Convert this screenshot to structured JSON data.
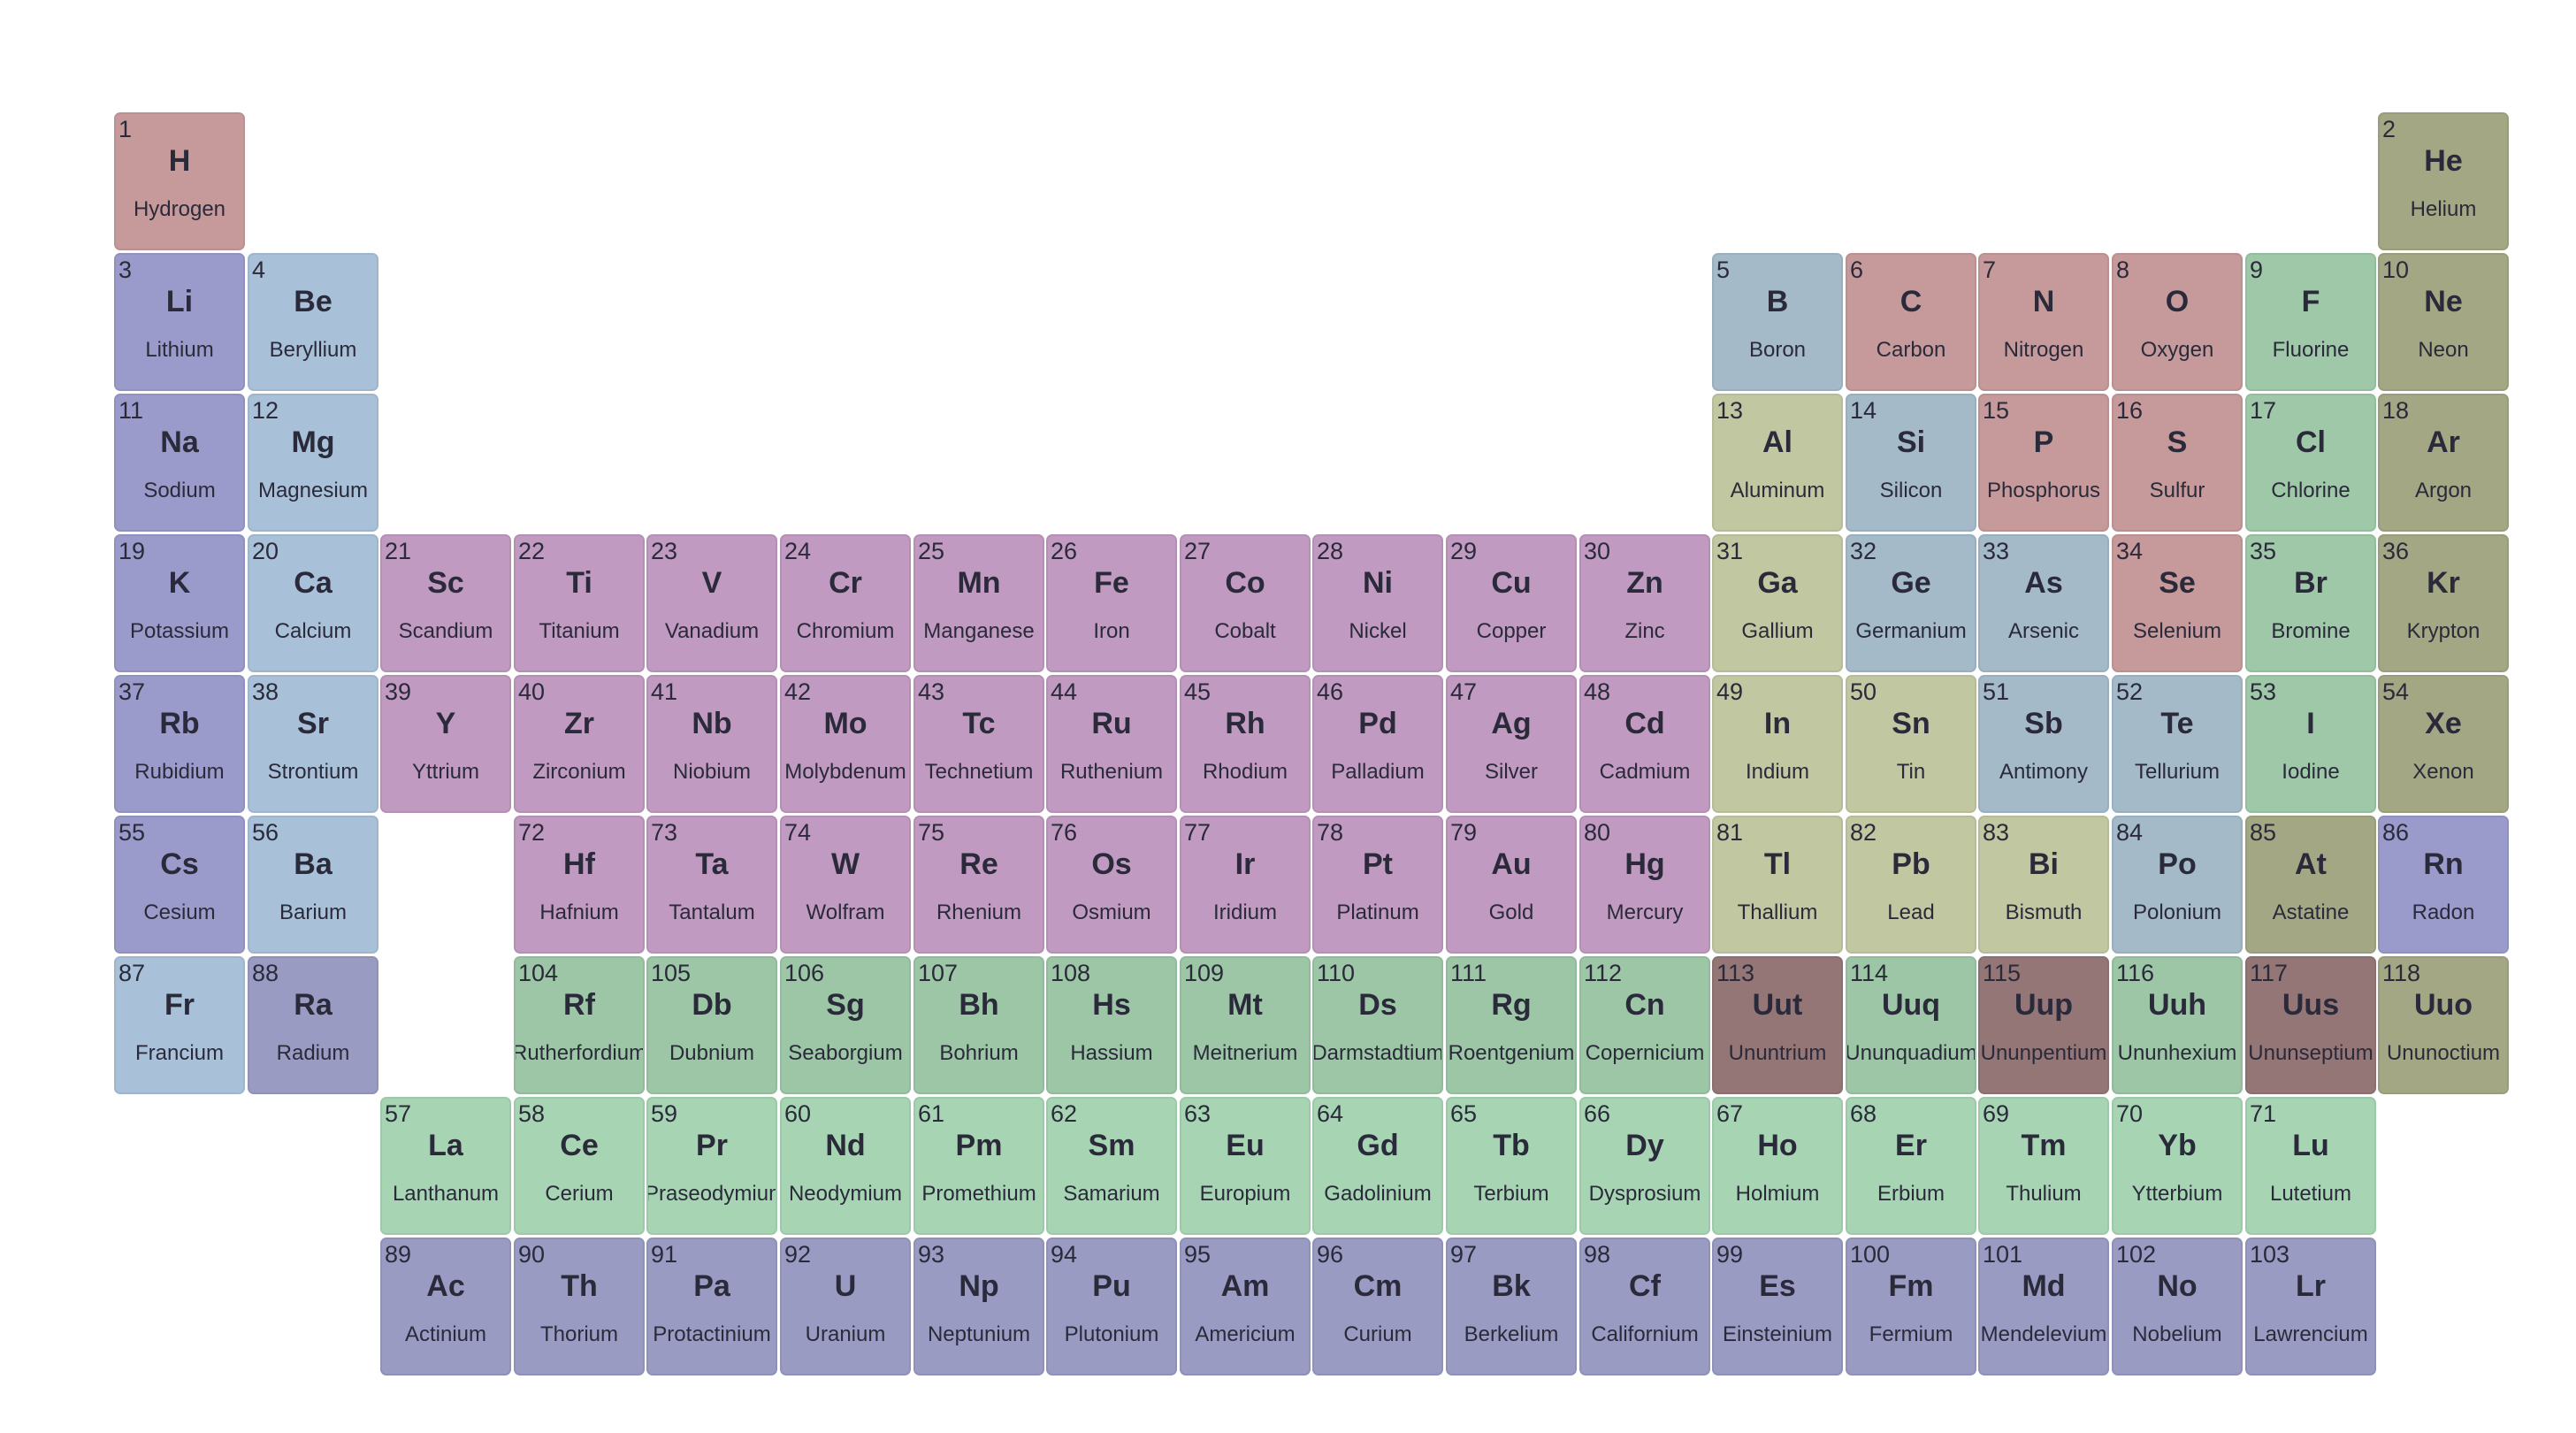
{
  "colors": {
    "nonmetal": "#c69a9b",
    "alkali": "#9a9bca",
    "alkaline": "#a8c1d9",
    "transition": "#c09ac1",
    "posttransition": "#c1c8a1",
    "metalloid": "#a4bac9",
    "halogen": "#9ec8a8",
    "noble": "#a3a784",
    "lanthanide": "#a7d5b4",
    "actinide": "#9a9bc3",
    "superheavy": "#9cc6a6",
    "unknown": "#947677"
  },
  "elements": [
    {
      "n": 1,
      "s": "H",
      "name": "Hydrogen",
      "r": 1,
      "c": 1,
      "cat": "nonmetal"
    },
    {
      "n": 2,
      "s": "He",
      "name": "Helium",
      "r": 1,
      "c": 18,
      "cat": "noble"
    },
    {
      "n": 3,
      "s": "Li",
      "name": "Lithium",
      "r": 2,
      "c": 1,
      "cat": "alkali"
    },
    {
      "n": 4,
      "s": "Be",
      "name": "Beryllium",
      "r": 2,
      "c": 2,
      "cat": "alkaline"
    },
    {
      "n": 5,
      "s": "B",
      "name": "Boron",
      "r": 2,
      "c": 13,
      "cat": "metalloid"
    },
    {
      "n": 6,
      "s": "C",
      "name": "Carbon",
      "r": 2,
      "c": 14,
      "cat": "nonmetal"
    },
    {
      "n": 7,
      "s": "N",
      "name": "Nitrogen",
      "r": 2,
      "c": 15,
      "cat": "nonmetal"
    },
    {
      "n": 8,
      "s": "O",
      "name": "Oxygen",
      "r": 2,
      "c": 16,
      "cat": "nonmetal"
    },
    {
      "n": 9,
      "s": "F",
      "name": "Fluorine",
      "r": 2,
      "c": 17,
      "cat": "halogen"
    },
    {
      "n": 10,
      "s": "Ne",
      "name": "Neon",
      "r": 2,
      "c": 18,
      "cat": "noble"
    },
    {
      "n": 11,
      "s": "Na",
      "name": "Sodium",
      "r": 3,
      "c": 1,
      "cat": "alkali"
    },
    {
      "n": 12,
      "s": "Mg",
      "name": "Magnesium",
      "r": 3,
      "c": 2,
      "cat": "alkaline"
    },
    {
      "n": 13,
      "s": "Al",
      "name": "Aluminum",
      "r": 3,
      "c": 13,
      "cat": "posttransition"
    },
    {
      "n": 14,
      "s": "Si",
      "name": "Silicon",
      "r": 3,
      "c": 14,
      "cat": "metalloid"
    },
    {
      "n": 15,
      "s": "P",
      "name": "Phosphorus",
      "r": 3,
      "c": 15,
      "cat": "nonmetal"
    },
    {
      "n": 16,
      "s": "S",
      "name": "Sulfur",
      "r": 3,
      "c": 16,
      "cat": "nonmetal"
    },
    {
      "n": 17,
      "s": "Cl",
      "name": "Chlorine",
      "r": 3,
      "c": 17,
      "cat": "halogen"
    },
    {
      "n": 18,
      "s": "Ar",
      "name": "Argon",
      "r": 3,
      "c": 18,
      "cat": "noble"
    },
    {
      "n": 19,
      "s": "K",
      "name": "Potassium",
      "r": 4,
      "c": 1,
      "cat": "alkali"
    },
    {
      "n": 20,
      "s": "Ca",
      "name": "Calcium",
      "r": 4,
      "c": 2,
      "cat": "alkaline"
    },
    {
      "n": 21,
      "s": "Sc",
      "name": "Scandium",
      "r": 4,
      "c": 3,
      "cat": "transition"
    },
    {
      "n": 22,
      "s": "Ti",
      "name": "Titanium",
      "r": 4,
      "c": 4,
      "cat": "transition"
    },
    {
      "n": 23,
      "s": "V",
      "name": "Vanadium",
      "r": 4,
      "c": 5,
      "cat": "transition"
    },
    {
      "n": 24,
      "s": "Cr",
      "name": "Chromium",
      "r": 4,
      "c": 6,
      "cat": "transition"
    },
    {
      "n": 25,
      "s": "Mn",
      "name": "Manganese",
      "r": 4,
      "c": 7,
      "cat": "transition"
    },
    {
      "n": 26,
      "s": "Fe",
      "name": "Iron",
      "r": 4,
      "c": 8,
      "cat": "transition"
    },
    {
      "n": 27,
      "s": "Co",
      "name": "Cobalt",
      "r": 4,
      "c": 9,
      "cat": "transition"
    },
    {
      "n": 28,
      "s": "Ni",
      "name": "Nickel",
      "r": 4,
      "c": 10,
      "cat": "transition"
    },
    {
      "n": 29,
      "s": "Cu",
      "name": "Copper",
      "r": 4,
      "c": 11,
      "cat": "transition"
    },
    {
      "n": 30,
      "s": "Zn",
      "name": "Zinc",
      "r": 4,
      "c": 12,
      "cat": "transition"
    },
    {
      "n": 31,
      "s": "Ga",
      "name": "Gallium",
      "r": 4,
      "c": 13,
      "cat": "posttransition"
    },
    {
      "n": 32,
      "s": "Ge",
      "name": "Germanium",
      "r": 4,
      "c": 14,
      "cat": "metalloid"
    },
    {
      "n": 33,
      "s": "As",
      "name": "Arsenic",
      "r": 4,
      "c": 15,
      "cat": "metalloid"
    },
    {
      "n": 34,
      "s": "Se",
      "name": "Selenium",
      "r": 4,
      "c": 16,
      "cat": "nonmetal"
    },
    {
      "n": 35,
      "s": "Br",
      "name": "Bromine",
      "r": 4,
      "c": 17,
      "cat": "halogen"
    },
    {
      "n": 36,
      "s": "Kr",
      "name": "Krypton",
      "r": 4,
      "c": 18,
      "cat": "noble"
    },
    {
      "n": 37,
      "s": "Rb",
      "name": "Rubidium",
      "r": 5,
      "c": 1,
      "cat": "alkali"
    },
    {
      "n": 38,
      "s": "Sr",
      "name": "Strontium",
      "r": 5,
      "c": 2,
      "cat": "alkaline"
    },
    {
      "n": 39,
      "s": "Y",
      "name": "Yttrium",
      "r": 5,
      "c": 3,
      "cat": "transition"
    },
    {
      "n": 40,
      "s": "Zr",
      "name": "Zirconium",
      "r": 5,
      "c": 4,
      "cat": "transition"
    },
    {
      "n": 41,
      "s": "Nb",
      "name": "Niobium",
      "r": 5,
      "c": 5,
      "cat": "transition"
    },
    {
      "n": 42,
      "s": "Mo",
      "name": "Molybdenum",
      "r": 5,
      "c": 6,
      "cat": "transition"
    },
    {
      "n": 43,
      "s": "Tc",
      "name": "Technetium",
      "r": 5,
      "c": 7,
      "cat": "transition"
    },
    {
      "n": 44,
      "s": "Ru",
      "name": "Ruthenium",
      "r": 5,
      "c": 8,
      "cat": "transition"
    },
    {
      "n": 45,
      "s": "Rh",
      "name": "Rhodium",
      "r": 5,
      "c": 9,
      "cat": "transition"
    },
    {
      "n": 46,
      "s": "Pd",
      "name": "Palladium",
      "r": 5,
      "c": 10,
      "cat": "transition"
    },
    {
      "n": 47,
      "s": "Ag",
      "name": "Silver",
      "r": 5,
      "c": 11,
      "cat": "transition"
    },
    {
      "n": 48,
      "s": "Cd",
      "name": "Cadmium",
      "r": 5,
      "c": 12,
      "cat": "transition"
    },
    {
      "n": 49,
      "s": "In",
      "name": "Indium",
      "r": 5,
      "c": 13,
      "cat": "posttransition"
    },
    {
      "n": 50,
      "s": "Sn",
      "name": "Tin",
      "r": 5,
      "c": 14,
      "cat": "posttransition"
    },
    {
      "n": 51,
      "s": "Sb",
      "name": "Antimony",
      "r": 5,
      "c": 15,
      "cat": "metalloid"
    },
    {
      "n": 52,
      "s": "Te",
      "name": "Tellurium",
      "r": 5,
      "c": 16,
      "cat": "metalloid"
    },
    {
      "n": 53,
      "s": "I",
      "name": "Iodine",
      "r": 5,
      "c": 17,
      "cat": "halogen"
    },
    {
      "n": 54,
      "s": "Xe",
      "name": "Xenon",
      "r": 5,
      "c": 18,
      "cat": "noble"
    },
    {
      "n": 55,
      "s": "Cs",
      "name": "Cesium",
      "r": 6,
      "c": 1,
      "cat": "alkali"
    },
    {
      "n": 56,
      "s": "Ba",
      "name": "Barium",
      "r": 6,
      "c": 2,
      "cat": "alkaline"
    },
    {
      "n": 72,
      "s": "Hf",
      "name": "Hafnium",
      "r": 6,
      "c": 4,
      "cat": "transition"
    },
    {
      "n": 73,
      "s": "Ta",
      "name": "Tantalum",
      "r": 6,
      "c": 5,
      "cat": "transition"
    },
    {
      "n": 74,
      "s": "W",
      "name": "Wolfram",
      "r": 6,
      "c": 6,
      "cat": "transition"
    },
    {
      "n": 75,
      "s": "Re",
      "name": "Rhenium",
      "r": 6,
      "c": 7,
      "cat": "transition"
    },
    {
      "n": 76,
      "s": "Os",
      "name": "Osmium",
      "r": 6,
      "c": 8,
      "cat": "transition"
    },
    {
      "n": 77,
      "s": "Ir",
      "name": "Iridium",
      "r": 6,
      "c": 9,
      "cat": "transition"
    },
    {
      "n": 78,
      "s": "Pt",
      "name": "Platinum",
      "r": 6,
      "c": 10,
      "cat": "transition"
    },
    {
      "n": 79,
      "s": "Au",
      "name": "Gold",
      "r": 6,
      "c": 11,
      "cat": "transition"
    },
    {
      "n": 80,
      "s": "Hg",
      "name": "Mercury",
      "r": 6,
      "c": 12,
      "cat": "transition"
    },
    {
      "n": 81,
      "s": "Tl",
      "name": "Thallium",
      "r": 6,
      "c": 13,
      "cat": "posttransition"
    },
    {
      "n": 82,
      "s": "Pb",
      "name": "Lead",
      "r": 6,
      "c": 14,
      "cat": "posttransition"
    },
    {
      "n": 83,
      "s": "Bi",
      "name": "Bismuth",
      "r": 6,
      "c": 15,
      "cat": "posttransition"
    },
    {
      "n": 84,
      "s": "Po",
      "name": "Polonium",
      "r": 6,
      "c": 16,
      "cat": "metalloid"
    },
    {
      "n": 85,
      "s": "At",
      "name": "Astatine",
      "r": 6,
      "c": 17,
      "cat": "noble"
    },
    {
      "n": 86,
      "s": "Rn",
      "name": "Radon",
      "r": 6,
      "c": 18,
      "cat": "alkali"
    },
    {
      "n": 87,
      "s": "Fr",
      "name": "Francium",
      "r": 7,
      "c": 1,
      "cat": "alkaline"
    },
    {
      "n": 88,
      "s": "Ra",
      "name": "Radium",
      "r": 7,
      "c": 2,
      "cat": "actinide"
    },
    {
      "n": 104,
      "s": "Rf",
      "name": "Rutherfordium",
      "r": 7,
      "c": 4,
      "cat": "superheavy"
    },
    {
      "n": 105,
      "s": "Db",
      "name": "Dubnium",
      "r": 7,
      "c": 5,
      "cat": "superheavy"
    },
    {
      "n": 106,
      "s": "Sg",
      "name": "Seaborgium",
      "r": 7,
      "c": 6,
      "cat": "superheavy"
    },
    {
      "n": 107,
      "s": "Bh",
      "name": "Bohrium",
      "r": 7,
      "c": 7,
      "cat": "superheavy"
    },
    {
      "n": 108,
      "s": "Hs",
      "name": "Hassium",
      "r": 7,
      "c": 8,
      "cat": "superheavy"
    },
    {
      "n": 109,
      "s": "Mt",
      "name": "Meitnerium",
      "r": 7,
      "c": 9,
      "cat": "superheavy"
    },
    {
      "n": 110,
      "s": "Ds",
      "name": "Darmstadtium",
      "r": 7,
      "c": 10,
      "cat": "superheavy"
    },
    {
      "n": 111,
      "s": "Rg",
      "name": "Roentgenium",
      "r": 7,
      "c": 11,
      "cat": "superheavy"
    },
    {
      "n": 112,
      "s": "Cn",
      "name": "Copernicium",
      "r": 7,
      "c": 12,
      "cat": "superheavy"
    },
    {
      "n": 113,
      "s": "Uut",
      "name": "Ununtrium",
      "r": 7,
      "c": 13,
      "cat": "unknown"
    },
    {
      "n": 114,
      "s": "Uuq",
      "name": "Ununquadium",
      "r": 7,
      "c": 14,
      "cat": "superheavy"
    },
    {
      "n": 115,
      "s": "Uup",
      "name": "Ununpentium",
      "r": 7,
      "c": 15,
      "cat": "unknown"
    },
    {
      "n": 116,
      "s": "Uuh",
      "name": "Ununhexium",
      "r": 7,
      "c": 16,
      "cat": "superheavy"
    },
    {
      "n": 117,
      "s": "Uus",
      "name": "Ununseptium",
      "r": 7,
      "c": 17,
      "cat": "unknown"
    },
    {
      "n": 118,
      "s": "Uuo",
      "name": "Ununoctium",
      "r": 7,
      "c": 18,
      "cat": "noble"
    },
    {
      "n": 57,
      "s": "La",
      "name": "Lanthanum",
      "r": 8,
      "c": 3,
      "cat": "lanthanide"
    },
    {
      "n": 58,
      "s": "Ce",
      "name": "Cerium",
      "r": 8,
      "c": 4,
      "cat": "lanthanide"
    },
    {
      "n": 59,
      "s": "Pr",
      "name": "Praseodymium",
      "r": 8,
      "c": 5,
      "cat": "lanthanide"
    },
    {
      "n": 60,
      "s": "Nd",
      "name": "Neodymium",
      "r": 8,
      "c": 6,
      "cat": "lanthanide"
    },
    {
      "n": 61,
      "s": "Pm",
      "name": "Promethium",
      "r": 8,
      "c": 7,
      "cat": "lanthanide"
    },
    {
      "n": 62,
      "s": "Sm",
      "name": "Samarium",
      "r": 8,
      "c": 8,
      "cat": "lanthanide"
    },
    {
      "n": 63,
      "s": "Eu",
      "name": "Europium",
      "r": 8,
      "c": 9,
      "cat": "lanthanide"
    },
    {
      "n": 64,
      "s": "Gd",
      "name": "Gadolinium",
      "r": 8,
      "c": 10,
      "cat": "lanthanide"
    },
    {
      "n": 65,
      "s": "Tb",
      "name": "Terbium",
      "r": 8,
      "c": 11,
      "cat": "lanthanide"
    },
    {
      "n": 66,
      "s": "Dy",
      "name": "Dysprosium",
      "r": 8,
      "c": 12,
      "cat": "lanthanide"
    },
    {
      "n": 67,
      "s": "Ho",
      "name": "Holmium",
      "r": 8,
      "c": 13,
      "cat": "lanthanide"
    },
    {
      "n": 68,
      "s": "Er",
      "name": "Erbium",
      "r": 8,
      "c": 14,
      "cat": "lanthanide"
    },
    {
      "n": 69,
      "s": "Tm",
      "name": "Thulium",
      "r": 8,
      "c": 15,
      "cat": "lanthanide"
    },
    {
      "n": 70,
      "s": "Yb",
      "name": "Ytterbium",
      "r": 8,
      "c": 16,
      "cat": "lanthanide"
    },
    {
      "n": 71,
      "s": "Lu",
      "name": "Lutetium",
      "r": 8,
      "c": 17,
      "cat": "lanthanide"
    },
    {
      "n": 89,
      "s": "Ac",
      "name": "Actinium",
      "r": 9,
      "c": 3,
      "cat": "actinide"
    },
    {
      "n": 90,
      "s": "Th",
      "name": "Thorium",
      "r": 9,
      "c": 4,
      "cat": "actinide"
    },
    {
      "n": 91,
      "s": "Pa",
      "name": "Protactinium",
      "r": 9,
      "c": 5,
      "cat": "actinide"
    },
    {
      "n": 92,
      "s": "U",
      "name": "Uranium",
      "r": 9,
      "c": 6,
      "cat": "actinide"
    },
    {
      "n": 93,
      "s": "Np",
      "name": "Neptunium",
      "r": 9,
      "c": 7,
      "cat": "actinide"
    },
    {
      "n": 94,
      "s": "Pu",
      "name": "Plutonium",
      "r": 9,
      "c": 8,
      "cat": "actinide"
    },
    {
      "n": 95,
      "s": "Am",
      "name": "Americium",
      "r": 9,
      "c": 9,
      "cat": "actinide"
    },
    {
      "n": 96,
      "s": "Cm",
      "name": "Curium",
      "r": 9,
      "c": 10,
      "cat": "actinide"
    },
    {
      "n": 97,
      "s": "Bk",
      "name": "Berkelium",
      "r": 9,
      "c": 11,
      "cat": "actinide"
    },
    {
      "n": 98,
      "s": "Cf",
      "name": "Californium",
      "r": 9,
      "c": 12,
      "cat": "actinide"
    },
    {
      "n": 99,
      "s": "Es",
      "name": "Einsteinium",
      "r": 9,
      "c": 13,
      "cat": "actinide"
    },
    {
      "n": 100,
      "s": "Fm",
      "name": "Fermium",
      "r": 9,
      "c": 14,
      "cat": "actinide"
    },
    {
      "n": 101,
      "s": "Md",
      "name": "Mendelevium",
      "r": 9,
      "c": 15,
      "cat": "actinide"
    },
    {
      "n": 102,
      "s": "No",
      "name": "Nobelium",
      "r": 9,
      "c": 16,
      "cat": "actinide"
    },
    {
      "n": 103,
      "s": "Lr",
      "name": "Lawrencium",
      "r": 9,
      "c": 17,
      "cat": "actinide"
    }
  ]
}
